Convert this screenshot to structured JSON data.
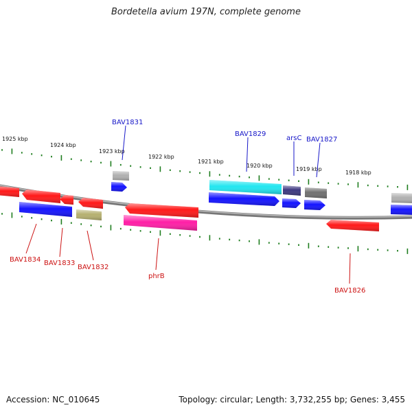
{
  "title": "Bordetella avium 197N, complete genome",
  "footer": {
    "accession": "Accession: NC_010645",
    "stats": "Topology: circular; Length: 3,732,255 bp; Genes: 3,455"
  },
  "colors": {
    "forward_label": "#1515c8",
    "reverse_label": "#cc1111",
    "backbone": "#888888",
    "tick": "#1e7d1e"
  },
  "scale": {
    "upper_labels": [
      "1925 kbp",
      "1924 kbp",
      "1923 kbp",
      "1922 kbp",
      "1921 kbp",
      "1920 kbp",
      "1919 kbp",
      "1918 kbp"
    ]
  },
  "gene_labels": {
    "forward": [
      "BAV1831",
      "BAV1829",
      "arsC",
      "BAV1827"
    ],
    "reverse": [
      "BAV1834",
      "BAV1833",
      "BAV1832",
      "phrB",
      "BAV1826"
    ]
  },
  "features": [
    {
      "id": "f-red-edge",
      "color": "#ff1a1a"
    },
    {
      "id": "f-red-2",
      "color": "#ff1a1a"
    },
    {
      "id": "f-red-3",
      "color": "#ff1a1a"
    },
    {
      "id": "f-red-4",
      "color": "#ff1a1a"
    },
    {
      "id": "f-blue-1",
      "color": "#1414ff"
    },
    {
      "id": "f-olive",
      "color": "#b5b070"
    },
    {
      "id": "f-grey-small",
      "color": "#b0b0b0"
    },
    {
      "id": "f-blue-small",
      "color": "#1414ff"
    },
    {
      "id": "f-red-phrb",
      "color": "#ff1a1a"
    },
    {
      "id": "f-magenta-phrb",
      "color": "#ff1fa6"
    },
    {
      "id": "f-cyan",
      "color": "#22e6f0"
    },
    {
      "id": "f-blue-long",
      "color": "#1414ff"
    },
    {
      "id": "f-navy-arsc",
      "color": "#3d3880"
    },
    {
      "id": "f-blue-arsc",
      "color": "#1414ff"
    },
    {
      "id": "f-darkgrey",
      "color": "#707070"
    },
    {
      "id": "f-blue-1827",
      "color": "#1414ff"
    },
    {
      "id": "f-red-1826",
      "color": "#ff1a1a"
    },
    {
      "id": "f-grey-right",
      "color": "#b0b0b0"
    },
    {
      "id": "f-blue-right",
      "color": "#1414ff"
    }
  ]
}
